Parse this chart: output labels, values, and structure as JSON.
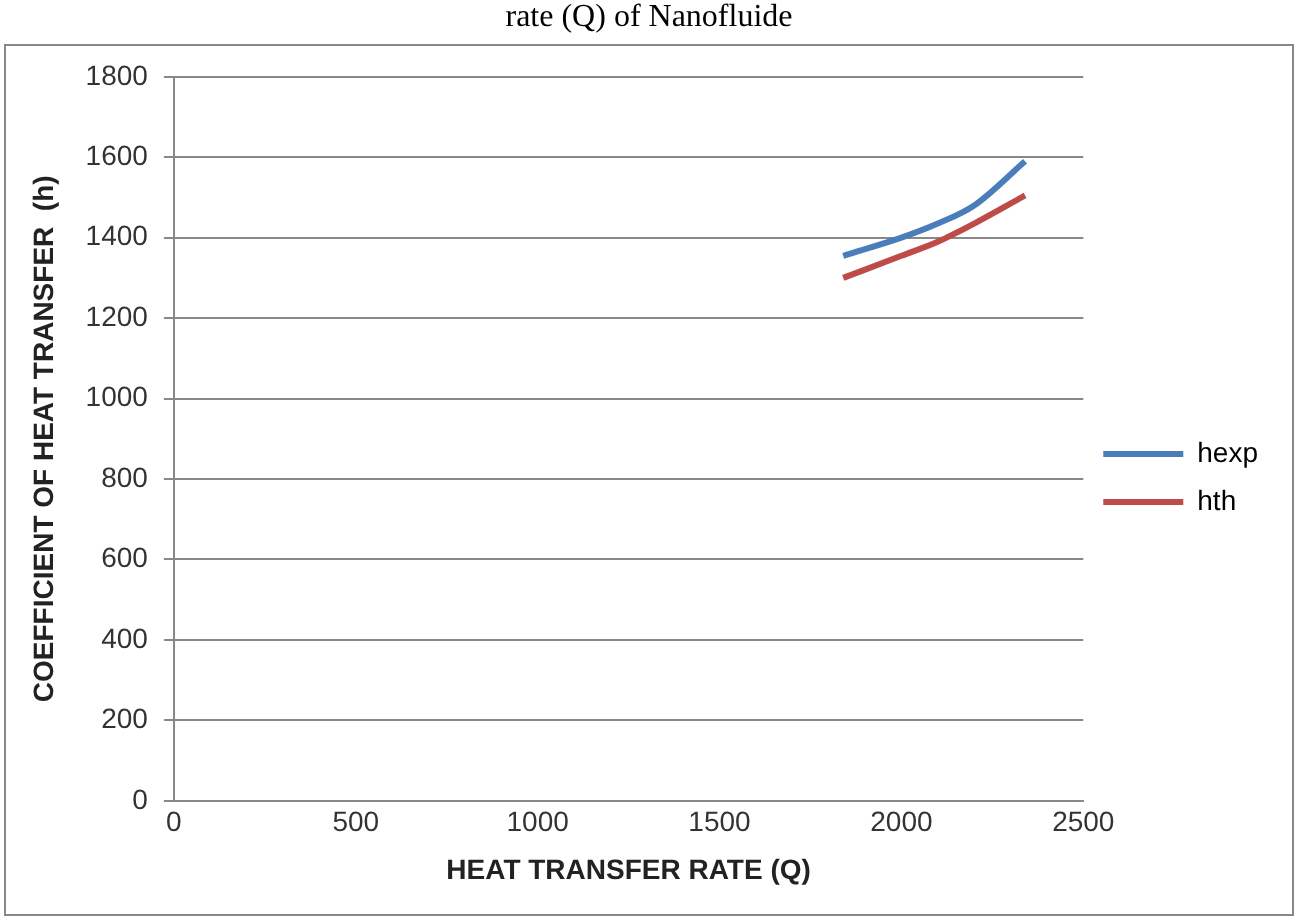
{
  "chart_data": {
    "type": "line",
    "title": "rate (Q) of Nanofluide",
    "xlabel": "HEAT TRANSFER RATE (Q)",
    "ylabel": "COEFFICIENT OF HEAT TRANSFER  (h)",
    "xlim": [
      0,
      2500
    ],
    "xticks": [
      0,
      500,
      1000,
      1500,
      2000,
      2500
    ],
    "ylim": [
      0,
      1800
    ],
    "yticks": [
      0,
      200,
      400,
      600,
      800,
      1000,
      1200,
      1400,
      1600,
      1800
    ],
    "grid": "y",
    "legend": "right",
    "marker": "none",
    "series": [
      {
        "name": "hexp",
        "color": "#4a7ebb",
        "x": [
          1840,
          2000,
          2100,
          2200,
          2340
        ],
        "values": [
          1355,
          1400,
          1435,
          1480,
          1590
        ]
      },
      {
        "name": "hth",
        "color": "#be4b48",
        "x": [
          1840,
          2000,
          2100,
          2200,
          2340
        ],
        "values": [
          1300,
          1355,
          1390,
          1435,
          1505
        ]
      }
    ]
  }
}
